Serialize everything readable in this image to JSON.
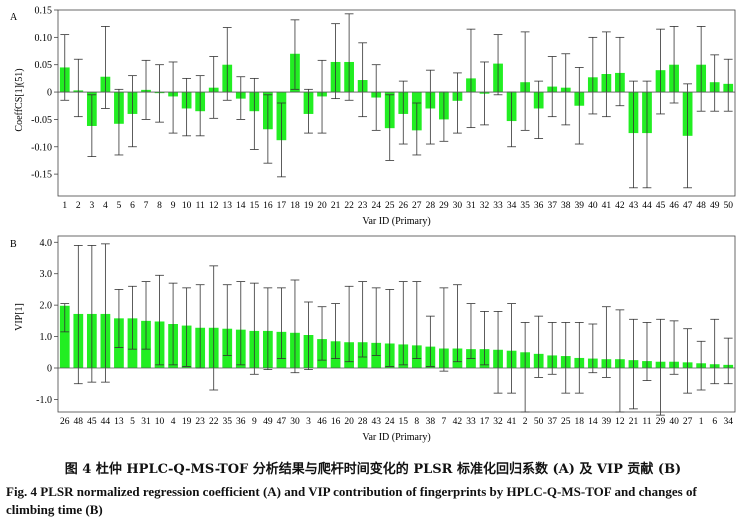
{
  "captions": {
    "cn": "图 4   杜仲 HPLC-Q-MS-TOF 分析结果与爬杆时间变化的 PLSR 标准化回归系数 (A) 及 VIP 贡献 (B)",
    "en": "Fig. 4   PLSR normalized regression coefficient (A) and VIP contribution of fingerprints by HPLC-Q-MS-TOF and changes of climbing time (B)"
  },
  "colors": {
    "bar": "#22ee22",
    "error_bar": "#333333",
    "frame": "#444444",
    "background": "#ffffff"
  },
  "chart_data": [
    {
      "type": "bar",
      "panel_label": "A",
      "xlabel": "Var ID (Primary)",
      "ylabel": "CoeffCS[1](51)",
      "ylim": [
        -0.19,
        0.15
      ],
      "yticks": [
        -0.15,
        -0.1,
        -0.05,
        0,
        0.05,
        0.1,
        0.15
      ],
      "ytick_labels": [
        "-0.15",
        "-0.10",
        "-0.05",
        "0",
        "0.05",
        "0.10",
        "0.15"
      ],
      "grid": false,
      "categories": [
        "1",
        "2",
        "3",
        "4",
        "5",
        "6",
        "7",
        "8",
        "9",
        "10",
        "11",
        "12",
        "13",
        "14",
        "15",
        "16",
        "17",
        "18",
        "19",
        "20",
        "21",
        "22",
        "23",
        "24",
        "25",
        "26",
        "27",
        "28",
        "29",
        "30",
        "31",
        "32",
        "33",
        "34",
        "35",
        "36",
        "37",
        "38",
        "39",
        "40",
        "41",
        "42",
        "43",
        "44",
        "45",
        "46",
        "47",
        "48",
        "49",
        "50"
      ],
      "values": [
        0.045,
        0.003,
        -0.062,
        0.028,
        -0.058,
        -0.04,
        0.004,
        -0.002,
        -0.008,
        -0.03,
        -0.035,
        0.008,
        0.05,
        -0.012,
        -0.035,
        -0.068,
        -0.088,
        0.07,
        -0.04,
        -0.008,
        0.055,
        0.055,
        0.022,
        -0.01,
        -0.066,
        -0.04,
        -0.07,
        -0.03,
        -0.05,
        -0.016,
        0.025,
        -0.003,
        0.052,
        -0.053,
        0.018,
        -0.03,
        0.01,
        0.008,
        -0.025,
        0.027,
        0.033,
        0.035,
        -0.075,
        -0.075,
        0.04,
        0.05,
        -0.08,
        0.05,
        0.018,
        0.015
      ],
      "error_low": [
        -0.015,
        -0.045,
        -0.118,
        -0.03,
        -0.115,
        -0.1,
        -0.05,
        -0.055,
        -0.075,
        -0.08,
        -0.08,
        -0.048,
        -0.015,
        -0.05,
        -0.105,
        -0.13,
        -0.155,
        0.005,
        -0.075,
        -0.075,
        -0.012,
        -0.015,
        -0.045,
        -0.07,
        -0.125,
        -0.095,
        -0.115,
        -0.095,
        -0.09,
        -0.075,
        -0.065,
        -0.06,
        -0.005,
        -0.1,
        -0.07,
        -0.085,
        -0.045,
        -0.06,
        -0.095,
        -0.04,
        -0.045,
        -0.025,
        -0.175,
        -0.175,
        -0.04,
        -0.02,
        -0.175,
        -0.035,
        -0.035,
        -0.035
      ],
      "error_high": [
        0.105,
        0.06,
        -0.005,
        0.12,
        0.005,
        0.03,
        0.058,
        0.05,
        0.055,
        0.025,
        0.03,
        0.065,
        0.118,
        0.028,
        0.025,
        -0.005,
        -0.02,
        0.132,
        0.005,
        0.058,
        0.125,
        0.143,
        0.09,
        0.05,
        -0.005,
        0.02,
        -0.02,
        0.04,
        0,
        0.035,
        0.115,
        0.055,
        0.105,
        0,
        0.11,
        0.02,
        0.065,
        0.07,
        0.045,
        0.1,
        0.11,
        0.1,
        0.02,
        0.02,
        0.115,
        0.12,
        0.015,
        0.12,
        0.068,
        0.06
      ]
    },
    {
      "type": "bar",
      "panel_label": "B",
      "xlabel": "Var ID (Primary)",
      "ylabel": "VIP[1]",
      "ylim": [
        -1.4,
        4.2
      ],
      "yticks": [
        -1,
        0,
        1,
        2,
        3,
        4
      ],
      "ytick_labels": [
        "-1.0",
        "0",
        "1.0",
        "2.0",
        "3.0",
        "4.0"
      ],
      "grid": false,
      "categories": [
        "26",
        "48",
        "45",
        "44",
        "13",
        "5",
        "31",
        "10",
        "4",
        "19",
        "23",
        "22",
        "35",
        "36",
        "9",
        "49",
        "47",
        "30",
        "3",
        "46",
        "16",
        "20",
        "28",
        "43",
        "24",
        "15",
        "8",
        "38",
        "7",
        "42",
        "33",
        "17",
        "32",
        "41",
        "2",
        "50",
        "37",
        "25",
        "18",
        "14",
        "39",
        "12",
        "21",
        "11",
        "29",
        "40",
        "27",
        "1",
        "6",
        "34"
      ],
      "values": [
        1.98,
        1.72,
        1.72,
        1.72,
        1.58,
        1.58,
        1.5,
        1.48,
        1.4,
        1.35,
        1.28,
        1.28,
        1.25,
        1.22,
        1.18,
        1.18,
        1.15,
        1.12,
        1.05,
        0.92,
        0.85,
        0.82,
        0.82,
        0.8,
        0.78,
        0.75,
        0.72,
        0.68,
        0.62,
        0.62,
        0.6,
        0.6,
        0.58,
        0.55,
        0.5,
        0.45,
        0.4,
        0.38,
        0.32,
        0.3,
        0.28,
        0.28,
        0.25,
        0.22,
        0.2,
        0.2,
        0.18,
        0.15,
        0.12,
        0.1
      ],
      "error_low": [
        1.15,
        -0.5,
        -0.45,
        -0.45,
        0.65,
        0.6,
        0.6,
        0.1,
        0.1,
        0.05,
        0,
        -0.7,
        0.4,
        0.1,
        -0.2,
        -0.05,
        0.3,
        -0.15,
        -0.05,
        0.25,
        0.3,
        0.2,
        0.35,
        0.4,
        0.05,
        0.1,
        0.3,
        0.05,
        -0.1,
        0.2,
        0.3,
        0.1,
        -0.8,
        -0.8,
        -1.4,
        -0.3,
        -0.2,
        -0.8,
        -0.8,
        -0.15,
        -0.3,
        -1.4,
        -1.3,
        -0.4,
        -1.5,
        -0.2,
        -0.8,
        -0.7,
        -0.5,
        -0.5
      ],
      "error_high": [
        2.05,
        3.9,
        3.9,
        3.95,
        2.5,
        2.6,
        2.75,
        2.95,
        2.7,
        2.55,
        2.65,
        3.25,
        2.65,
        2.75,
        2.7,
        2.55,
        2.55,
        2.8,
        2.1,
        1.95,
        2.05,
        2.6,
        2.75,
        2.55,
        2.5,
        2.75,
        2.75,
        1.65,
        2.55,
        2.65,
        2.05,
        1.8,
        1.8,
        2.05,
        1.45,
        1.65,
        1.45,
        1.45,
        1.45,
        1.4,
        1.95,
        1.85,
        1.55,
        1.45,
        1.55,
        1.5,
        1.25,
        0.85,
        1.55,
        0.95
      ]
    }
  ]
}
